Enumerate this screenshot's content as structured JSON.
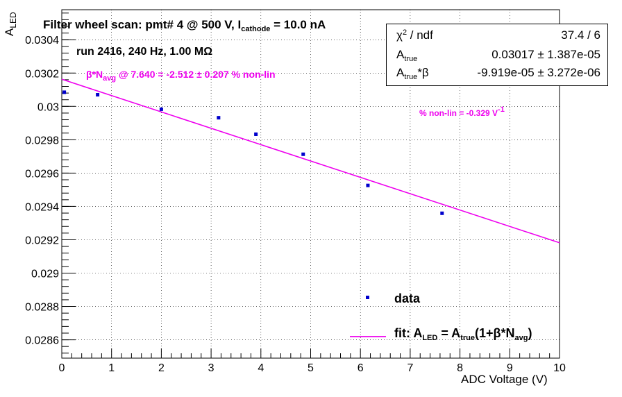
{
  "chart_data": {
    "type": "scatter",
    "title_main": "Filter wheel scan: pmt#   4 @   500 V, I",
    "title_sub": "cathode",
    "title_tail": "  = 10.0 nA",
    "run_info": "run 2416, 240 Hz, 1.00 MΩ",
    "nonlin_annotation": {
      "prefix": "β*N",
      "sub": "avg",
      "suffix": " @ 7.640 = -2.512 ± 0.207 % non-lin"
    },
    "nonlin_per_volt": {
      "text": "% non-lin = -0.329 V",
      "sup": "-1"
    },
    "xlabel": "ADC Voltage (V)",
    "ylabel_main": "A",
    "ylabel_sub": "LED",
    "xlim": [
      0,
      10
    ],
    "ylim": [
      0.02849,
      0.03058
    ],
    "x_ticks": [
      0,
      1,
      2,
      3,
      4,
      5,
      6,
      7,
      8,
      9,
      10
    ],
    "x_tick_labels": [
      "0",
      "1",
      "2",
      "3",
      "4",
      "5",
      "6",
      "7",
      "8",
      "9",
      "10"
    ],
    "y_ticks": [
      0.0286,
      0.0288,
      0.029,
      0.0292,
      0.0294,
      0.0296,
      0.0298,
      0.03,
      0.0302,
      0.0304
    ],
    "y_tick_labels": [
      "0.0286",
      "0.0288",
      "0.029",
      "0.0292",
      "0.0294",
      "0.0296",
      "0.0298",
      "0.03",
      "0.0302",
      "0.0304"
    ],
    "grid": true,
    "series": [
      {
        "name": "data",
        "x": [
          0.05,
          0.72,
          2.0,
          3.15,
          3.9,
          4.85,
          6.15,
          7.64
        ],
        "y": [
          0.030085,
          0.03007,
          0.029983,
          0.029932,
          0.029833,
          0.029713,
          0.029526,
          0.029359
        ],
        "yerr": [
          7e-06,
          4e-06,
          4e-06,
          5e-06,
          8e-06,
          4e-06,
          5e-06,
          6e-06
        ],
        "color": "#0000cc"
      },
      {
        "name": "fit",
        "type": "line",
        "x": [
          0,
          10
        ],
        "y": [
          0.030163,
          0.029182
        ],
        "color": "#ee00ee"
      }
    ],
    "legend": {
      "data_label": "data",
      "fit_label_parts": [
        "fit: A",
        "LED",
        " = A",
        "true",
        "(1+β*N",
        "avg",
        ")"
      ]
    },
    "stats": [
      {
        "label": "χ",
        "label_sup": "2",
        "label_tail": " / ndf",
        "value": "37.4 / 6"
      },
      {
        "label": "A",
        "label_sub": "true",
        "label_tail": "",
        "value": "0.03017 ± 1.387e-05"
      },
      {
        "label": "A",
        "label_sub": "true",
        "label_tail": "*β",
        "value": "-9.919e-05 ± 3.272e-06"
      }
    ]
  },
  "colors": {
    "data": "#0000cc",
    "fit": "#ee00ee",
    "grid": "#000000"
  }
}
